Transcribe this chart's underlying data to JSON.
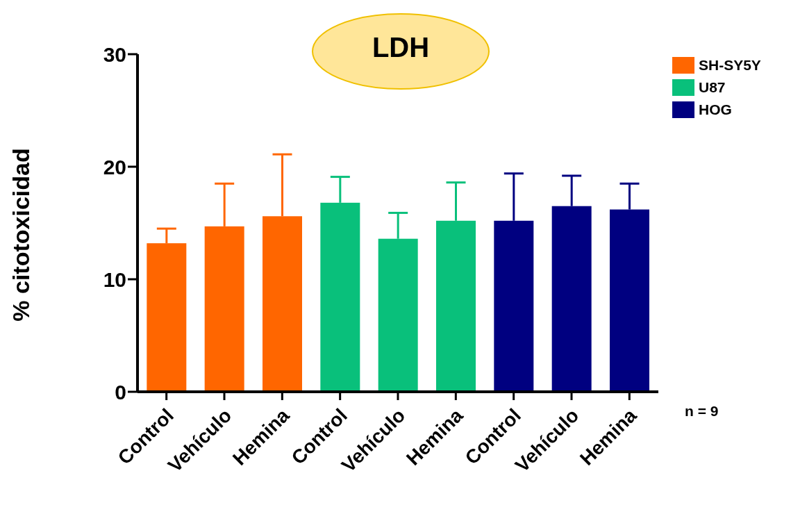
{
  "chart_data": {
    "type": "bar",
    "title": "LDH",
    "ylabel": "% citotoxicidad",
    "categories": [
      "Control",
      "Vehículo",
      "Hemina",
      "Control",
      "Vehículo",
      "Hemina",
      "Control",
      "Vehículo",
      "Hemina"
    ],
    "series": [
      {
        "name": "SH-SY5Y",
        "color": "#ff6600",
        "values": [
          13.2,
          14.7,
          15.6,
          null,
          null,
          null,
          null,
          null,
          null
        ],
        "errors": [
          [
            13.2,
            14.5
          ],
          [
            14.7,
            18.5
          ],
          [
            15.6,
            21.1
          ],
          null,
          null,
          null,
          null,
          null,
          null
        ]
      },
      {
        "name": "U87",
        "color": "#09c07b",
        "values": [
          null,
          null,
          null,
          16.8,
          13.6,
          15.2,
          null,
          null,
          null
        ],
        "errors": [
          null,
          null,
          null,
          [
            16.8,
            19.1
          ],
          [
            13.6,
            15.9
          ],
          [
            15.2,
            18.6
          ],
          null,
          null,
          null
        ]
      },
      {
        "name": "HOG",
        "color": "#000080",
        "values": [
          null,
          null,
          null,
          null,
          null,
          null,
          15.2,
          16.5,
          16.2
        ],
        "errors": [
          null,
          null,
          null,
          null,
          null,
          null,
          [
            15.2,
            19.4
          ],
          [
            16.5,
            19.2
          ],
          [
            16.2,
            18.5
          ]
        ]
      }
    ],
    "stacked": true,
    "ylim": [
      0,
      30
    ],
    "yticks": [
      0,
      10,
      20,
      30
    ],
    "grid": false,
    "legend": "top right",
    "annotations": [
      "n = 9"
    ]
  }
}
